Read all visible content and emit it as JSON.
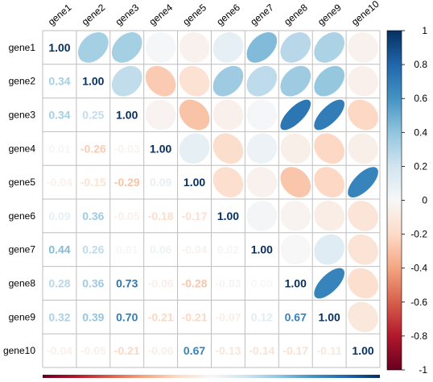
{
  "chart_data": {
    "type": "heatmap",
    "variables": [
      "gene1",
      "gene2",
      "gene3",
      "gene4",
      "gene5",
      "gene6",
      "gene7",
      "gene8",
      "gene9",
      "gene10"
    ],
    "matrix": [
      [
        1.0,
        0.34,
        0.34,
        0.01,
        -0.04,
        0.09,
        0.44,
        0.28,
        0.32,
        -0.04
      ],
      [
        0.34,
        1.0,
        0.25,
        -0.26,
        -0.15,
        0.36,
        0.26,
        0.36,
        0.39,
        -0.05
      ],
      [
        0.34,
        0.25,
        1.0,
        -0.03,
        -0.29,
        -0.05,
        0.01,
        0.73,
        0.7,
        -0.21
      ],
      [
        0.01,
        -0.26,
        -0.03,
        1.0,
        0.09,
        -0.18,
        0.06,
        -0.06,
        -0.21,
        -0.06
      ],
      [
        -0.04,
        -0.15,
        -0.29,
        0.09,
        1.0,
        -0.17,
        -0.04,
        -0.28,
        -0.21,
        0.67
      ],
      [
        0.09,
        0.36,
        -0.05,
        -0.18,
        -0.17,
        1.0,
        0.02,
        -0.03,
        -0.07,
        -0.13
      ],
      [
        0.44,
        0.26,
        0.01,
        0.06,
        -0.04,
        0.02,
        1.0,
        0.0,
        0.12,
        -0.14
      ],
      [
        0.28,
        0.36,
        0.73,
        -0.06,
        -0.28,
        -0.03,
        0.0,
        1.0,
        0.67,
        -0.17
      ],
      [
        0.32,
        0.39,
        0.7,
        -0.21,
        -0.21,
        -0.07,
        0.12,
        0.67,
        1.0,
        -0.11
      ],
      [
        -0.04,
        -0.05,
        -0.21,
        -0.06,
        0.67,
        -0.13,
        -0.14,
        -0.17,
        -0.11,
        1.0
      ]
    ],
    "lower_triangle": "numbers",
    "upper_triangle": "ellipses",
    "diagonal": "numbers",
    "colorbar": {
      "ticks": [
        "1",
        "0.8",
        "0.6",
        "0.4",
        "0.2",
        "0",
        "-0.2",
        "-0.4",
        "-0.6",
        "-0.8",
        "-1"
      ],
      "range": [
        -1,
        1
      ],
      "low_color": "#67001F",
      "mid_color": "#F7F7F7",
      "high_color": "#053061"
    },
    "grid": true,
    "title": "",
    "xlabel": "",
    "ylabel": ""
  }
}
